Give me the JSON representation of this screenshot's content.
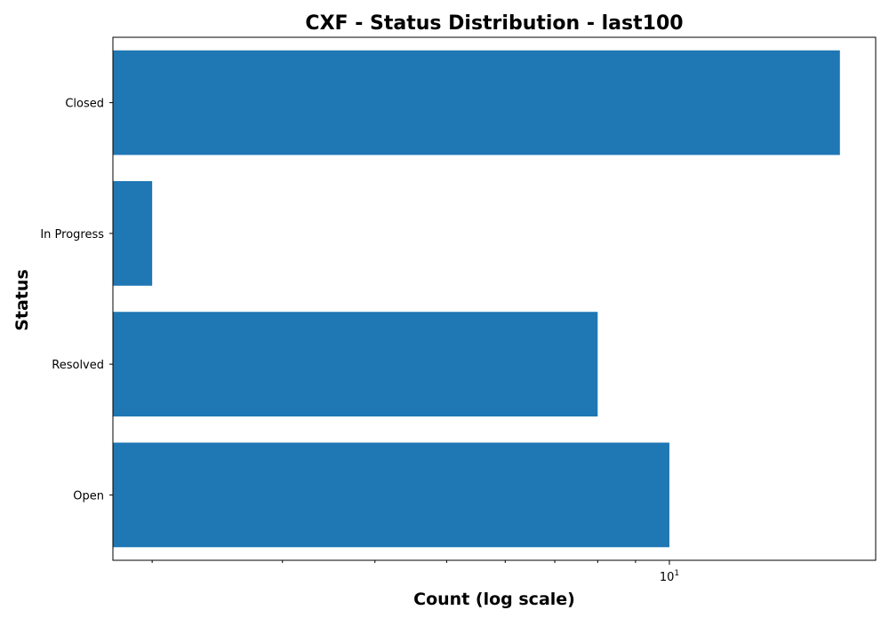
{
  "chart_data": {
    "type": "bar",
    "orientation": "horizontal",
    "title": "CXF - Status Distribution - last100",
    "xlabel": "Count (log scale)",
    "ylabel": "Status",
    "x_scale": "log",
    "xlim": [
      1.77,
      19.0
    ],
    "x_major_tick_labels": [
      {
        "base": "10",
        "exponent": "1",
        "value": 10
      }
    ],
    "x_minor_ticks": [
      2,
      3,
      4,
      5,
      6,
      7,
      8,
      9
    ],
    "categories": [
      "Closed",
      "In Progress",
      "Resolved",
      "Open"
    ],
    "values": [
      17,
      2,
      8,
      10
    ],
    "bar_color": "#1f77b4",
    "grid": false,
    "legend": "none"
  }
}
